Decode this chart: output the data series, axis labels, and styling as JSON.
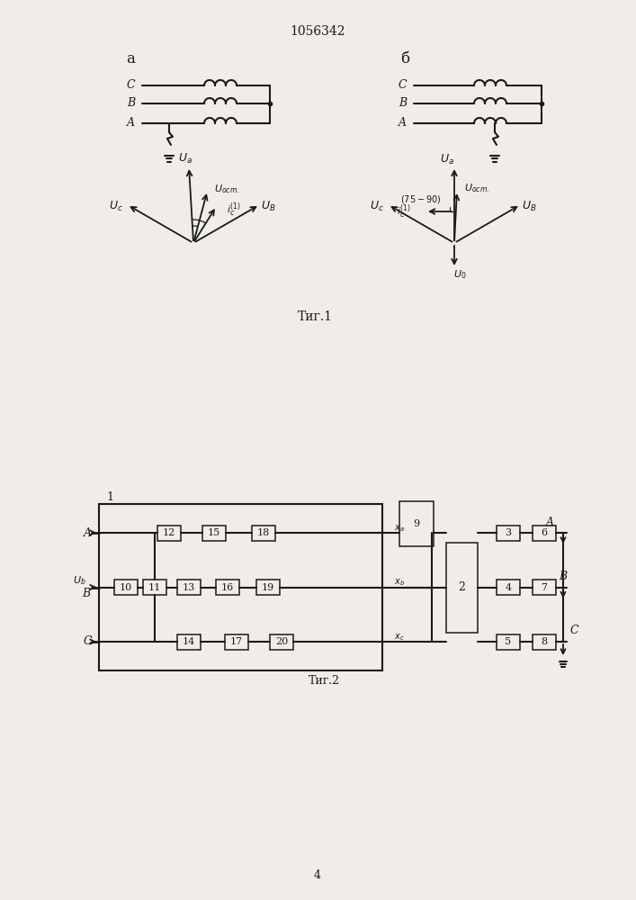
{
  "title": "1056342",
  "bg_color": "#f0ede8",
  "line_color": "#1a1a1a",
  "fig1_label": "Τиг.1",
  "fig2_label": "Τиг.2",
  "page_num": "4"
}
